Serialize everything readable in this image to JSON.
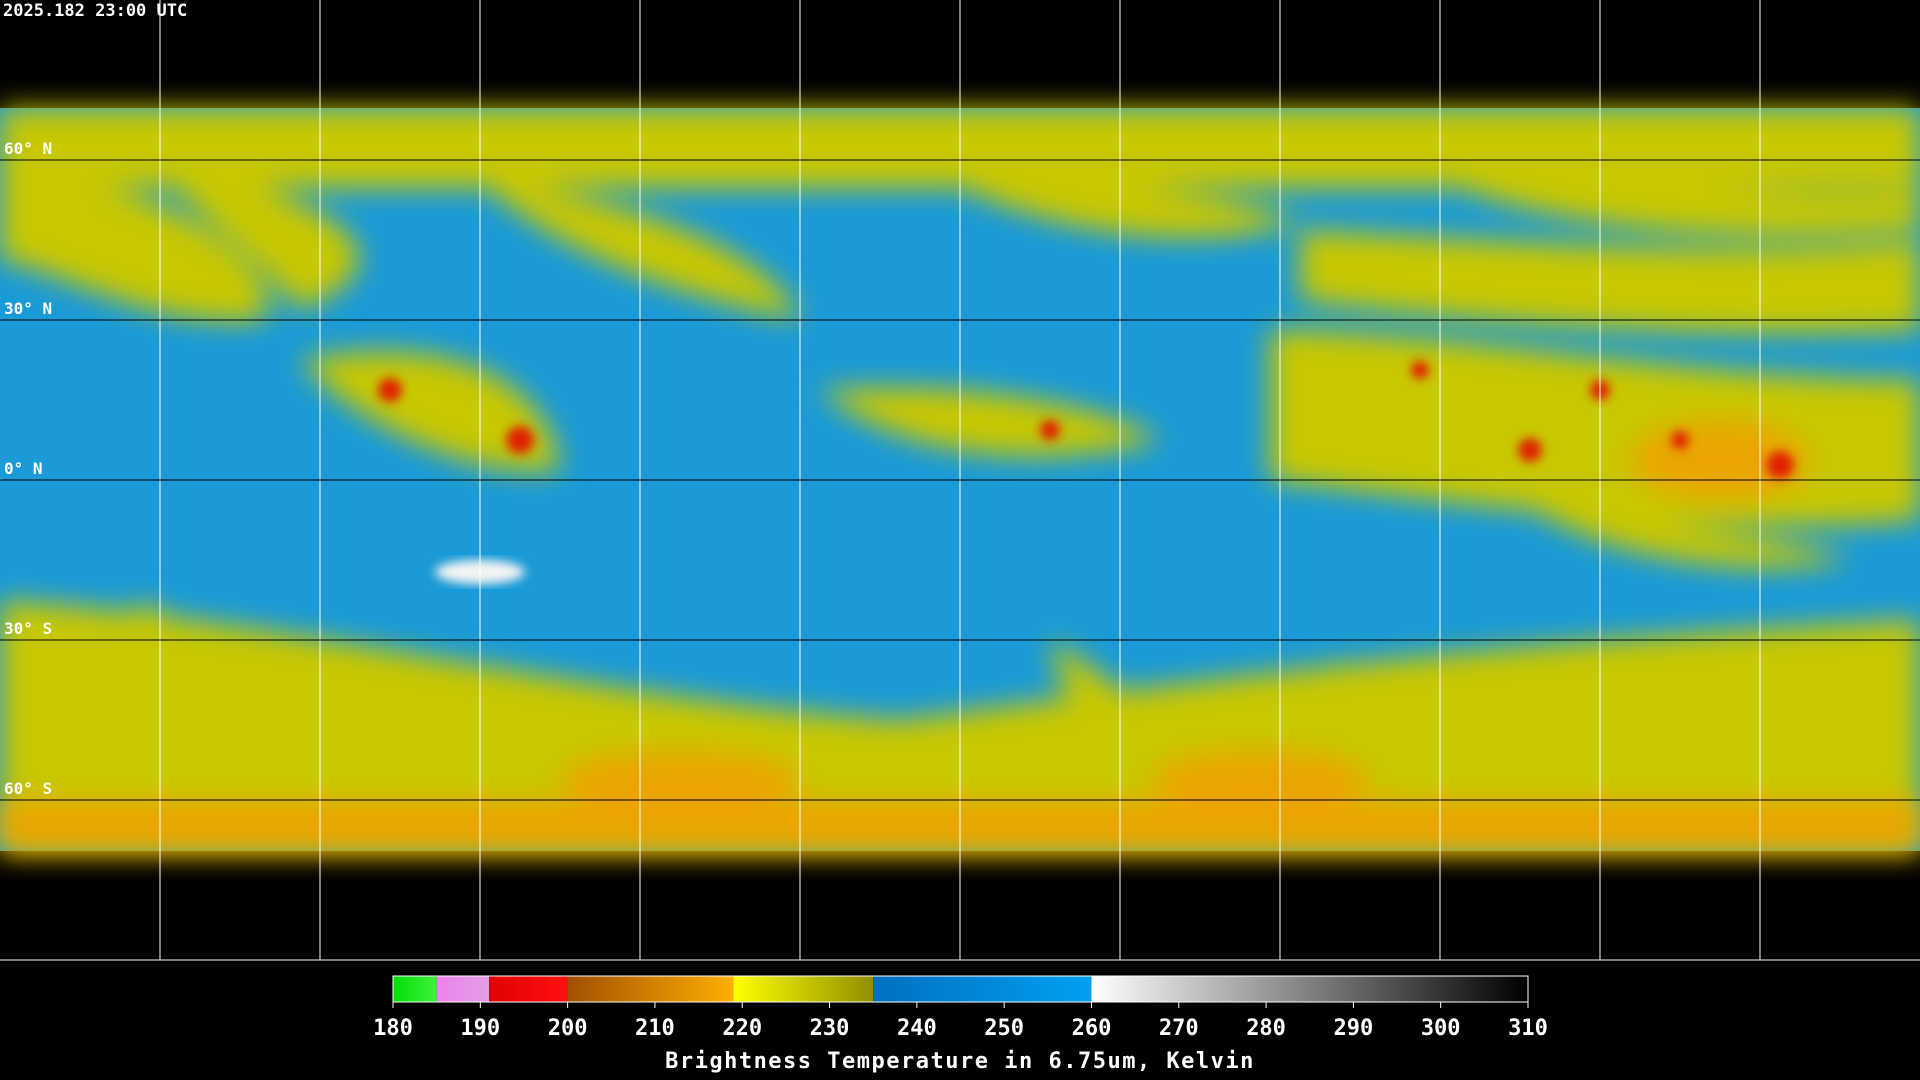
{
  "header": {
    "timestamp": "2025.182 23:00 UTC"
  },
  "latitudes": [
    {
      "value": 60,
      "label": "60° N"
    },
    {
      "value": 30,
      "label": "30° N"
    },
    {
      "value": 0,
      "label": "0° N"
    },
    {
      "value": -30,
      "label": "30° S"
    },
    {
      "value": -60,
      "label": "60° S"
    }
  ],
  "colorbar": {
    "title": "Brightness Temperature in 6.75um, Kelvin",
    "range": [
      180,
      310
    ],
    "ticks": [
      180,
      190,
      200,
      210,
      220,
      230,
      240,
      250,
      260,
      270,
      280,
      290,
      300,
      310
    ],
    "segments": [
      {
        "from": 180,
        "to": 185,
        "colors": [
          "#00e000",
          "#40f040"
        ]
      },
      {
        "from": 185,
        "to": 191,
        "colors": [
          "#f080f0",
          "#e0a0e0"
        ]
      },
      {
        "from": 191,
        "to": 200,
        "colors": [
          "#e00000",
          "#ff1010"
        ]
      },
      {
        "from": 200,
        "to": 219,
        "colors": [
          "#a05000",
          "#ffb000"
        ]
      },
      {
        "from": 219,
        "to": 235,
        "colors": [
          "#ffff00",
          "#909000"
        ]
      },
      {
        "from": 235,
        "to": 260,
        "colors": [
          "#0070c0",
          "#00a0f0"
        ]
      },
      {
        "from": 260,
        "to": 310,
        "colors": [
          "#ffffff",
          "#000000"
        ]
      }
    ]
  }
}
